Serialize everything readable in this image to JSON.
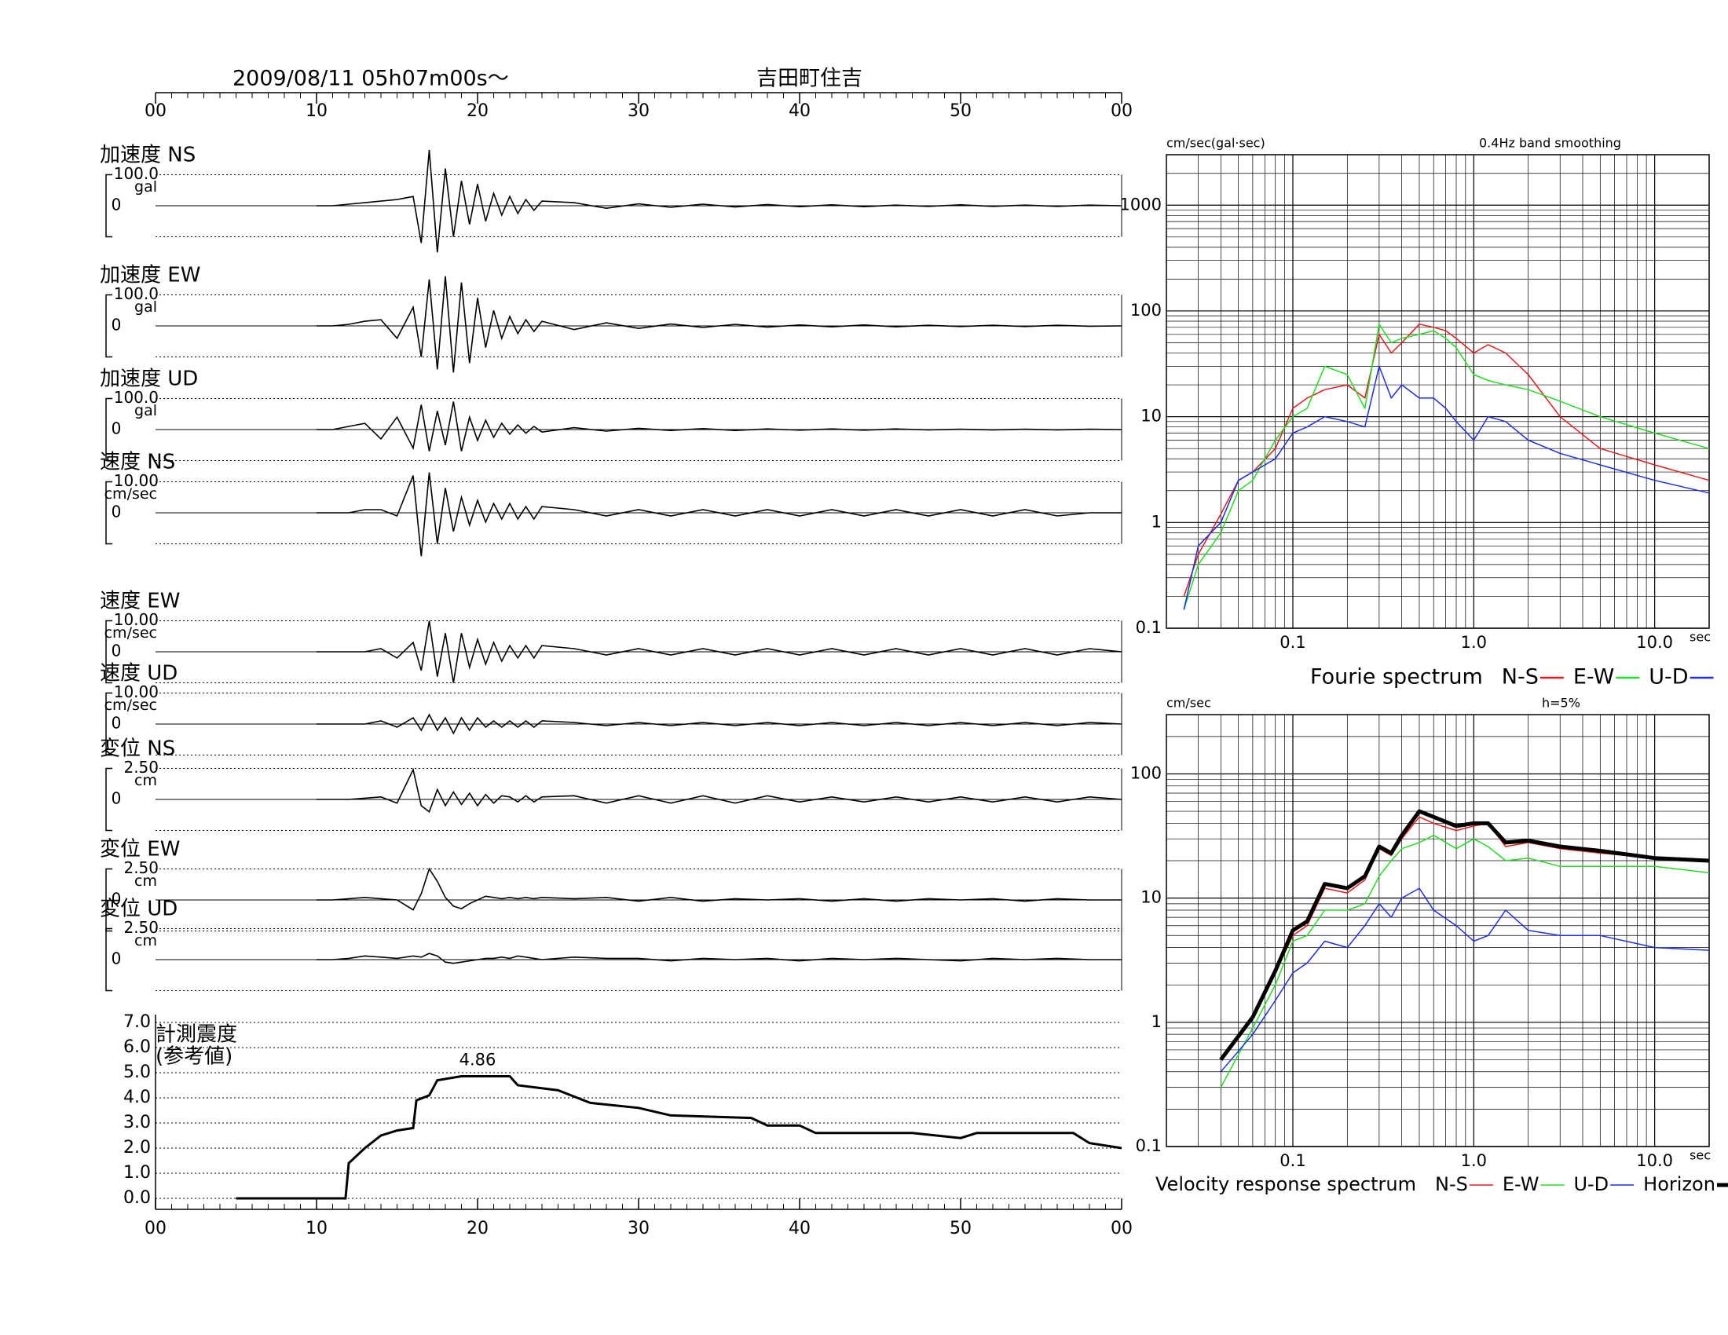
{
  "chart_data": [
    {
      "type": "waveform",
      "title": "2009/08/11  05h07m00s～",
      "station": "吉田町住吉",
      "xlim": [
        0,
        60
      ],
      "xticks": [
        {
          "value": 0,
          "label": "00"
        },
        10,
        20,
        30,
        40,
        50,
        {
          "value": 60,
          "label": "00"
        }
      ],
      "x": [
        10,
        11,
        12,
        13,
        14,
        15,
        16,
        16.5,
        17,
        17.5,
        18,
        18.5,
        19,
        19.5,
        20,
        20.5,
        21,
        21.5,
        22,
        22.5,
        23,
        23.5,
        24,
        26,
        28,
        30,
        32,
        34,
        36,
        38,
        40,
        42,
        44,
        46,
        48,
        50,
        52,
        54,
        56,
        58,
        60
      ],
      "traces": [
        {
          "name": "加速度 NS",
          "unit": "gal",
          "ylim": [
            -100,
            100
          ],
          "yticks": [
            {
              "value": 100,
              "label": "100.0"
            },
            0
          ],
          "values": [
            0,
            0,
            5,
            10,
            15,
            20,
            30,
            -120,
            180,
            -150,
            120,
            -100,
            80,
            -60,
            70,
            -50,
            40,
            -30,
            30,
            -25,
            20,
            -15,
            15,
            10,
            -8,
            6,
            -5,
            5,
            -4,
            4,
            -3,
            3,
            -3,
            2,
            -2,
            3,
            -2,
            2,
            -2,
            2,
            0
          ]
        },
        {
          "name": "加速度 EW",
          "unit": "gal",
          "ylim": [
            -100,
            100
          ],
          "yticks": [
            {
              "value": 100,
              "label": "100.0"
            },
            0
          ],
          "values": [
            0,
            0,
            5,
            15,
            20,
            -40,
            60,
            -100,
            150,
            -140,
            160,
            -150,
            140,
            -120,
            90,
            -70,
            50,
            -40,
            30,
            -25,
            20,
            -18,
            15,
            -12,
            10,
            -8,
            6,
            -5,
            5,
            -4,
            3,
            -3,
            3,
            -3,
            2,
            -2,
            2,
            -2,
            2,
            -1,
            0
          ]
        },
        {
          "name": "加速度 UD",
          "unit": "gal",
          "ylim": [
            -100,
            100
          ],
          "yticks": [
            {
              "value": 100,
              "label": "100.0"
            },
            0
          ],
          "values": [
            0,
            0,
            10,
            20,
            -30,
            40,
            -60,
            80,
            -70,
            60,
            -50,
            90,
            -70,
            40,
            -35,
            30,
            -25,
            20,
            -15,
            15,
            -12,
            10,
            -8,
            6,
            -5,
            4,
            -3,
            3,
            -3,
            2,
            -2,
            2,
            -2,
            2,
            -1,
            1,
            -1,
            1,
            -1,
            1,
            0
          ]
        },
        {
          "name": "速度 NS",
          "unit": "cm/sec",
          "ylim": [
            -10,
            10
          ],
          "yticks": [
            {
              "value": 10,
              "label": "10.00"
            },
            0
          ],
          "values": [
            0,
            0,
            0,
            1,
            1,
            -1,
            12,
            -14,
            13,
            -10,
            8,
            -6,
            5,
            -4,
            4,
            -3,
            3,
            -2,
            3,
            -2,
            2,
            -2,
            2,
            1,
            -1,
            1,
            -1,
            1,
            -1,
            1,
            -1,
            1,
            -1,
            1,
            -1,
            1,
            -1,
            1,
            -1,
            0,
            0
          ]
        },
        {
          "name": "速度 EW",
          "unit": "cm/sec",
          "ylim": [
            -10,
            10
          ],
          "yticks": [
            {
              "value": 10,
              "label": "10.00"
            },
            0
          ],
          "values": [
            0,
            0,
            0,
            0,
            1,
            -2,
            3,
            -6,
            10,
            -8,
            6,
            -10,
            6,
            -5,
            4,
            -4,
            3,
            -3,
            2,
            -2,
            2,
            -2,
            2,
            1,
            -1,
            1,
            -1,
            1,
            -1,
            1,
            -1,
            1,
            -1,
            1,
            -1,
            1,
            -1,
            1,
            -1,
            1,
            0
          ]
        },
        {
          "name": "速度 UD",
          "unit": "cm/sec",
          "ylim": [
            -10,
            10
          ],
          "yticks": [
            {
              "value": 10,
              "label": "10.00"
            },
            0
          ],
          "values": [
            0,
            0,
            0,
            0,
            1,
            -1,
            2,
            -2,
            3,
            -2,
            2,
            -3,
            2,
            -2,
            2,
            -1,
            1,
            -1,
            1,
            -1,
            1,
            -1,
            1,
            0.5,
            -0.5,
            0.5,
            -0.5,
            0.5,
            -0.5,
            0.5,
            -0.5,
            0.5,
            -0.5,
            0.5,
            -0.5,
            0.5,
            -0.5,
            0.5,
            -0.5,
            0.5,
            0
          ]
        },
        {
          "name": "変位 NS",
          "unit": "cm",
          "ylim": [
            -2.5,
            2.5
          ],
          "yticks": [
            {
              "value": 2.5,
              "label": "2.50"
            },
            0
          ],
          "values": [
            0,
            0,
            0,
            0.1,
            0.2,
            -0.3,
            2.4,
            -0.5,
            -1.0,
            0.8,
            -0.5,
            0.6,
            -0.4,
            0.5,
            -0.5,
            0.4,
            -0.3,
            0.3,
            0.2,
            -0.2,
            0.3,
            -0.2,
            0.2,
            0.3,
            -0.3,
            0.3,
            -0.3,
            0.3,
            -0.3,
            0.3,
            -0.2,
            0.2,
            -0.2,
            0.2,
            -0.2,
            0.2,
            -0.2,
            0.2,
            -0.2,
            0.2,
            0
          ]
        },
        {
          "name": "変位 EW",
          "unit": "cm",
          "ylim": [
            -2.5,
            2.5
          ],
          "yticks": [
            {
              "value": 2.5,
              "label": "2.50"
            },
            0
          ],
          "values": [
            0,
            0,
            0.1,
            0.2,
            0.1,
            0,
            -0.8,
            0.5,
            2.5,
            1.5,
            0.2,
            -0.5,
            -0.7,
            -0.3,
            0,
            0.3,
            0.2,
            0.1,
            0.2,
            0.1,
            0.2,
            0.1,
            0.2,
            0.1,
            0.2,
            -0.1,
            0.2,
            -0.1,
            0.1,
            0,
            0.1,
            -0.1,
            0.1,
            -0.1,
            0.1,
            0,
            0.1,
            -0.1,
            0.1,
            0,
            0
          ]
        },
        {
          "name": "変位 UD",
          "unit": "cm",
          "ylim": [
            -2.5,
            2.5
          ],
          "yticks": [
            {
              "value": 2.5,
              "label": "2.50"
            },
            0
          ],
          "values": [
            0,
            0,
            0.1,
            0.3,
            0.2,
            0.1,
            0.3,
            0.2,
            0.5,
            0.3,
            -0.2,
            -0.3,
            -0.2,
            -0.1,
            0,
            0.1,
            0.1,
            0.2,
            0.1,
            0.3,
            0.2,
            0.1,
            0,
            0.2,
            0.1,
            0.1,
            -0.1,
            0.1,
            0,
            0.1,
            -0.1,
            0.1,
            0,
            0.1,
            0,
            -0.1,
            0.1,
            0,
            0.1,
            0,
            0
          ]
        }
      ]
    },
    {
      "type": "line",
      "title": "計測震度",
      "subtitle": "(参考値)",
      "xlim": [
        0,
        60
      ],
      "xticks": [
        {
          "value": 0,
          "label": "00"
        },
        10,
        20,
        30,
        40,
        50,
        {
          "value": 60,
          "label": "00"
        }
      ],
      "ylim": [
        0,
        7
      ],
      "yticks": [
        {
          "value": 0,
          "label": "0.0"
        },
        {
          "value": 1,
          "label": "1.0"
        },
        {
          "value": 2,
          "label": "2.0"
        },
        {
          "value": 3,
          "label": "3.0"
        },
        {
          "value": 4,
          "label": "4.0"
        },
        {
          "value": 5,
          "label": "5.0"
        },
        {
          "value": 6,
          "label": "6.0"
        },
        {
          "value": 7,
          "label": "7.0"
        }
      ],
      "x": [
        5,
        11.8,
        12,
        13,
        14,
        15,
        16,
        16.2,
        17,
        17.5,
        19,
        22,
        22.5,
        25,
        27,
        30,
        32,
        37,
        38,
        40,
        41,
        47,
        50,
        51,
        57,
        58,
        60
      ],
      "values": [
        0,
        0,
        1.4,
        2.0,
        2.5,
        2.7,
        2.8,
        3.9,
        4.1,
        4.7,
        4.86,
        4.86,
        4.5,
        4.3,
        3.8,
        3.6,
        3.3,
        3.2,
        2.9,
        2.9,
        2.6,
        2.6,
        2.4,
        2.6,
        2.6,
        2.2,
        2.0
      ],
      "color": "#000000",
      "annotation": {
        "x": 20,
        "y": 4.86
      }
    },
    {
      "type": "loglog",
      "title": "Fourie spectrum",
      "ylabel": "cm/sec(gal·sec)",
      "note": "0.4Hz band smoothing",
      "xlabel": "sec",
      "xlim": [
        0.02,
        20
      ],
      "ylim": [
        0.1,
        3000
      ],
      "xticks": [
        0.1,
        {
          "value": 1,
          "label": "1.0"
        },
        {
          "value": 10,
          "label": "10.0"
        }
      ],
      "yticks": [
        0.1,
        1,
        10,
        100,
        1000
      ],
      "x": [
        0.025,
        0.03,
        0.04,
        0.05,
        0.06,
        0.08,
        0.1,
        0.12,
        0.15,
        0.2,
        0.25,
        0.3,
        0.35,
        0.4,
        0.5,
        0.6,
        0.7,
        0.8,
        1.0,
        1.2,
        1.5,
        2,
        3,
        5,
        10,
        20
      ],
      "series": [
        {
          "name": "N-S",
          "color": "#e8191c",
          "values": [
            0.2,
            0.5,
            1.2,
            2.5,
            3,
            5,
            12,
            15,
            18,
            20,
            15,
            60,
            40,
            50,
            75,
            70,
            65,
            55,
            40,
            48,
            40,
            25,
            10,
            5,
            3.5,
            2.5
          ]
        },
        {
          "name": "E-W",
          "color": "#22dd22",
          "values": [
            0.15,
            0.4,
            0.8,
            2,
            2.5,
            6,
            10,
            12,
            30,
            25,
            12,
            75,
            50,
            55,
            60,
            65,
            55,
            45,
            25,
            22,
            20,
            18,
            14,
            10,
            7,
            5
          ]
        },
        {
          "name": "U-D",
          "color": "#1c2ee8",
          "values": [
            0.15,
            0.6,
            1,
            2.5,
            3,
            4,
            7,
            8,
            10,
            9,
            8,
            30,
            15,
            20,
            15,
            15,
            12,
            9,
            6,
            10,
            9,
            6,
            4.5,
            3.5,
            2.5,
            1.9
          ]
        }
      ]
    },
    {
      "type": "loglog",
      "title": "Velocity response spectrum",
      "ylabel": "cm/sec",
      "note": "h=5%",
      "xlabel": "sec",
      "xlim": [
        0.02,
        20
      ],
      "ylim": [
        0.1,
        300
      ],
      "xticks": [
        0.1,
        {
          "value": 1,
          "label": "1.0"
        },
        {
          "value": 10,
          "label": "10.0"
        }
      ],
      "yticks": [
        0.1,
        1,
        10,
        100
      ],
      "x": [
        0.04,
        0.06,
        0.08,
        0.1,
        0.12,
        0.15,
        0.2,
        0.25,
        0.3,
        0.35,
        0.4,
        0.5,
        0.6,
        0.8,
        1.0,
        1.2,
        1.5,
        2,
        3,
        5,
        10,
        20
      ],
      "series": [
        {
          "name": "N-S",
          "color": "#e8191c",
          "width": 1.5,
          "values": [
            0.5,
            1.1,
            2.5,
            5,
            6,
            12,
            11,
            14,
            25,
            22,
            30,
            45,
            40,
            35,
            38,
            40,
            26,
            28,
            25,
            23,
            21,
            20
          ]
        },
        {
          "name": "E-W",
          "color": "#22dd22",
          "width": 1.5,
          "values": [
            0.3,
            0.9,
            2,
            4.5,
            5,
            8,
            8,
            9,
            15,
            20,
            25,
            28,
            32,
            25,
            30,
            26,
            20,
            21,
            18,
            18,
            18,
            16
          ]
        },
        {
          "name": "U-D",
          "color": "#1c2ee8",
          "width": 1.5,
          "values": [
            0.4,
            0.8,
            1.5,
            2.5,
            3,
            4.5,
            4,
            6,
            9,
            7,
            10,
            12,
            8,
            6,
            4.5,
            5,
            8,
            5.5,
            5,
            5,
            4,
            3.8
          ]
        },
        {
          "name": "Horizon",
          "color": "#000000",
          "width": 5,
          "values": [
            0.5,
            1.1,
            2.6,
            5.5,
            6.5,
            13,
            12,
            15,
            26,
            23,
            32,
            50,
            45,
            38,
            40,
            40,
            28,
            29,
            26,
            24,
            21,
            20
          ]
        }
      ]
    }
  ]
}
